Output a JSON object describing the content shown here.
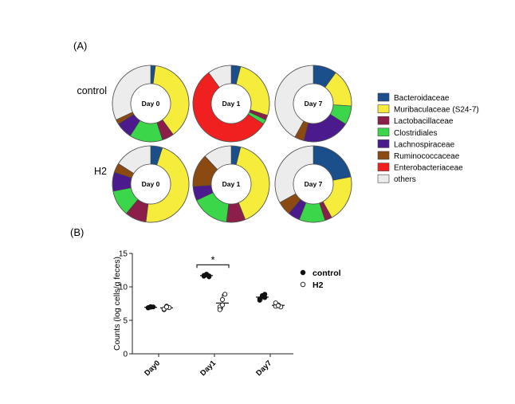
{
  "panel_a_label": "(A)",
  "panel_b_label": "(B)",
  "chart_data": [
    {
      "type": "pie",
      "subtype": "donut-grid",
      "rows": [
        "control",
        "H2"
      ],
      "columns": [
        "Day 0",
        "Day 1",
        "Day 7"
      ],
      "legend": {
        "placement": "right",
        "entries": [
          {
            "name": "Bacteroidaceae",
            "color": "#1a4f8c"
          },
          {
            "name": "Muribaculaceae (S24-7)",
            "color": "#f5ec3c"
          },
          {
            "name": "Lactobacillaceae",
            "color": "#8c1f4a"
          },
          {
            "name": "Clostridiales",
            "color": "#3cd64b"
          },
          {
            "name": "Lachnospiraceae",
            "color": "#4b1a8c"
          },
          {
            "name": "Ruminococcaceae",
            "color": "#8a4a12"
          },
          {
            "name": "Enterobacteriaceae",
            "color": "#f02020"
          },
          {
            "name": "others",
            "color": "#ececec"
          }
        ]
      },
      "donuts": [
        {
          "group": "control",
          "day": "Day 0",
          "values": [
            2,
            38,
            5,
            14,
            7,
            2,
            0,
            32
          ]
        },
        {
          "group": "control",
          "day": "Day 1",
          "values": [
            4,
            26,
            2,
            2,
            0,
            0,
            56,
            10
          ]
        },
        {
          "group": "control",
          "day": "Day 7",
          "values": [
            10,
            16,
            0,
            8,
            20,
            4,
            0,
            42
          ]
        },
        {
          "group": "H2",
          "day": "Day 0",
          "values": [
            5,
            47,
            9,
            11,
            8,
            4,
            0,
            16
          ]
        },
        {
          "group": "H2",
          "day": "Day 1",
          "values": [
            4,
            40,
            8,
            16,
            6,
            14,
            0,
            12
          ]
        },
        {
          "group": "H2",
          "day": "Day 7",
          "values": [
            22,
            20,
            3,
            11,
            5,
            6,
            0,
            33
          ]
        }
      ]
    },
    {
      "type": "scatter",
      "subtype": "dot-plot",
      "ylabel": "Counts (log cells/g feces)",
      "ylim": [
        0,
        15
      ],
      "yticks": [
        0,
        5,
        10,
        15
      ],
      "categories": [
        "Day0",
        "Day1",
        "Day7"
      ],
      "series": [
        {
          "name": "control",
          "marker": "filled",
          "points": [
            [
              6.9,
              6.95,
              7.0,
              6.85,
              7.05
            ],
            [
              11.6,
              11.8,
              11.5,
              11.7,
              11.9,
              11.65
            ],
            [
              8.2,
              8.6,
              8.9,
              8.0,
              8.7,
              8.4
            ]
          ]
        },
        {
          "name": "H2",
          "marker": "open",
          "points": [
            [
              6.6,
              7.1,
              6.9,
              6.7,
              7.0
            ],
            [
              7.0,
              8.1,
              8.9,
              6.6,
              7.3
            ],
            [
              7.1,
              7.3,
              7.0,
              7.6,
              7.2
            ]
          ]
        }
      ],
      "significance": {
        "label": "*",
        "between": [
          "Day1 control",
          "Day1 H2"
        ]
      },
      "legend": {
        "placement": "right"
      }
    }
  ]
}
